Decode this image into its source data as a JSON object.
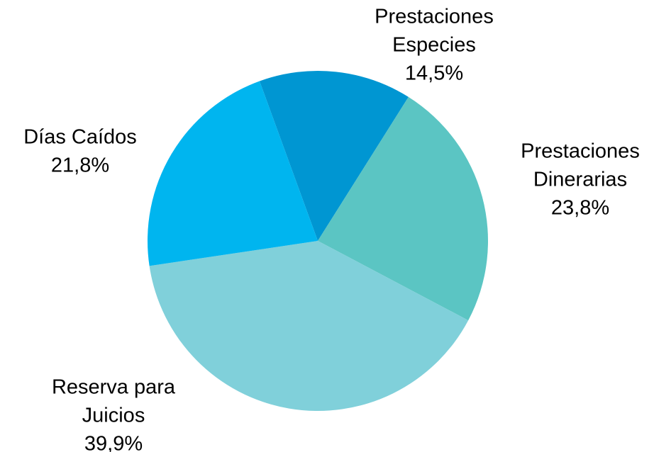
{
  "chart_data": {
    "type": "pie",
    "categories": [
      [
        "Prestaciones",
        "Especies"
      ],
      [
        "Prestaciones",
        "Dinerarias"
      ],
      [
        "Reserva para",
        "Juicios"
      ],
      [
        "Días Caídos"
      ]
    ],
    "values": [
      14.5,
      23.8,
      39.9,
      21.8
    ],
    "value_labels": [
      "14,5%",
      "23,8%",
      "39,9%",
      "21,8%"
    ],
    "colors": [
      "#0096d2",
      "#5bc5c3",
      "#80d0da",
      "#00b5ef"
    ]
  }
}
